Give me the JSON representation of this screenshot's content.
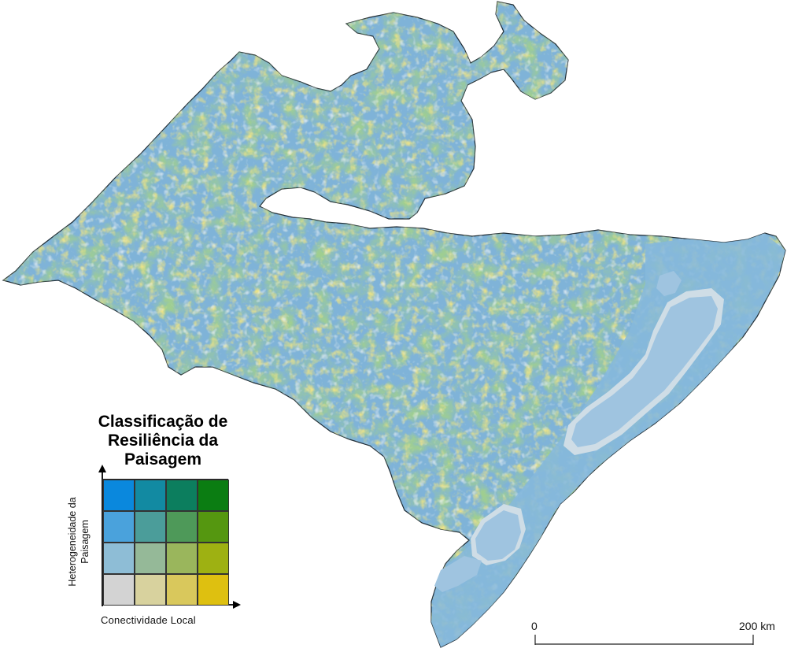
{
  "legend": {
    "title_lines": [
      "Classificação de",
      "Resiliência da",
      "Paisagem"
    ],
    "y_axis_label_lines": [
      "Heterogeneidade da",
      "Paisagem"
    ],
    "x_axis_label": "Conectividade Local",
    "grid_colors": [
      [
        "#0a88dd",
        "#128aa2",
        "#0c7e5e",
        "#0b7d12"
      ],
      [
        "#4aa2dc",
        "#4b9d9a",
        "#4e9959",
        "#559710"
      ],
      [
        "#8ebdd6",
        "#95b998",
        "#9ab65c",
        "#9eb112"
      ],
      [
        "#d3d3d3",
        "#d8d29e",
        "#d9c85c",
        "#dec010"
      ]
    ]
  },
  "scale_bar": {
    "start_label": "0",
    "end_label": "200 km"
  },
  "colors": {
    "land_base": "#7fb3d8",
    "lagoon": "#9fc4e0",
    "lagoon_edge": "#cfdde6",
    "region_outline": "#1e2a33"
  }
}
